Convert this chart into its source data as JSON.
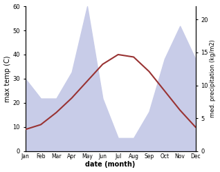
{
  "months": [
    "Jan",
    "Feb",
    "Mar",
    "Apr",
    "May",
    "Jun",
    "Jul",
    "Aug",
    "Sep",
    "Oct",
    "Nov",
    "Dec"
  ],
  "month_indices": [
    1,
    2,
    3,
    4,
    5,
    6,
    7,
    8,
    9,
    10,
    11,
    12
  ],
  "temperature": [
    9,
    11,
    16,
    22,
    29,
    36,
    40,
    39,
    33,
    25,
    17,
    10
  ],
  "precipitation": [
    11,
    8,
    8,
    12,
    22,
    8,
    2,
    2,
    6,
    14,
    19,
    14
  ],
  "temp_color": "#993333",
  "precip_fill_color": "#c8cce8",
  "precip_line_color": "#c8cce8",
  "background_color": "#ffffff",
  "ylabel_left": "max temp (C)",
  "ylabel_right": "med. precipitation (kg/m2)",
  "xlabel": "date (month)",
  "ylim_left": [
    0,
    60
  ],
  "ylim_right": [
    0,
    22
  ],
  "yticks_left": [
    0,
    10,
    20,
    30,
    40,
    50,
    60
  ],
  "yticks_right": [
    0,
    5,
    10,
    15,
    20
  ]
}
